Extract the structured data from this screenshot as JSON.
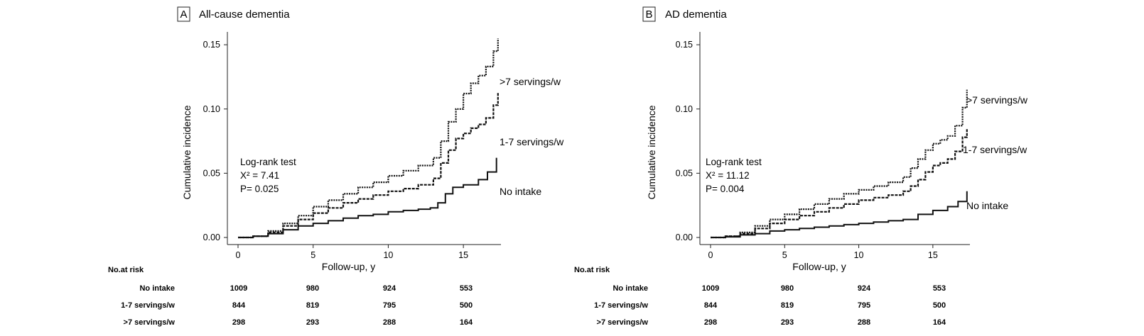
{
  "chart_data": [
    {
      "type": "line",
      "panel_letter": "A",
      "title": "All-cause dementia",
      "xlabel": "Follow-up, y",
      "ylabel": "Cumulative incidence",
      "xlim": [
        0,
        17.5
      ],
      "ylim": [
        0,
        0.16
      ],
      "xticks": [
        0,
        5,
        10,
        15
      ],
      "yticks": [
        "0.00",
        "0.05",
        "0.10",
        "0.15"
      ],
      "stats": [
        "Log-rank test",
        "X² = 7.41",
        "P= 0.025"
      ],
      "series": [
        {
          "name": "No intake",
          "style": "solid",
          "x": [
            0,
            1,
            2,
            3,
            4,
            5,
            6,
            7,
            8,
            9,
            10,
            11,
            12,
            12.8,
            13.3,
            13.8,
            14.3,
            15,
            16,
            16.6,
            17.2
          ],
          "y": [
            0,
            0.001,
            0.003,
            0.006,
            0.009,
            0.011,
            0.013,
            0.015,
            0.017,
            0.018,
            0.02,
            0.021,
            0.022,
            0.023,
            0.027,
            0.034,
            0.039,
            0.041,
            0.045,
            0.051,
            0.062
          ]
        },
        {
          "name": "1-7 servings/w",
          "style": "dashed",
          "x": [
            0,
            1,
            2,
            3,
            4,
            5,
            6,
            7,
            8,
            9,
            10,
            11,
            12,
            13,
            13.5,
            14,
            14.5,
            15,
            15.5,
            16,
            16.5,
            17,
            17.3
          ],
          "y": [
            0,
            0.001,
            0.004,
            0.009,
            0.014,
            0.019,
            0.023,
            0.027,
            0.03,
            0.033,
            0.036,
            0.038,
            0.041,
            0.046,
            0.058,
            0.068,
            0.077,
            0.081,
            0.085,
            0.088,
            0.093,
            0.103,
            0.113
          ]
        },
        {
          "name": ">7 servings/w",
          "style": "dotted",
          "x": [
            0,
            1,
            2,
            3,
            4,
            5,
            6,
            7,
            8,
            9,
            10,
            11,
            12,
            13,
            13.5,
            14,
            14.5,
            15,
            15.5,
            16,
            16.5,
            17,
            17.3
          ],
          "y": [
            0,
            0.001,
            0.005,
            0.011,
            0.017,
            0.024,
            0.029,
            0.034,
            0.039,
            0.043,
            0.048,
            0.052,
            0.056,
            0.062,
            0.075,
            0.09,
            0.1,
            0.112,
            0.12,
            0.126,
            0.133,
            0.145,
            0.155
          ]
        }
      ],
      "risk_table": {
        "header": "No.at risk",
        "rows": [
          {
            "label": "No intake",
            "values": [
              "1009",
              "980",
              "924",
              "553"
            ]
          },
          {
            "label": "1-7 servings/w",
            "values": [
              "844",
              "819",
              "795",
              "500"
            ]
          },
          {
            "label": ">7 servings/w",
            "values": [
              "298",
              "293",
              "288",
              "164"
            ]
          }
        ]
      }
    },
    {
      "type": "line",
      "panel_letter": "B",
      "title": "AD dementia",
      "xlabel": "Follow-up, y",
      "ylabel": "Cumulative incidence",
      "xlim": [
        0,
        17.5
      ],
      "ylim": [
        0,
        0.16
      ],
      "xticks": [
        0,
        5,
        10,
        15
      ],
      "yticks": [
        "0.00",
        "0.05",
        "0.10",
        "0.15"
      ],
      "stats": [
        "Log-rank test",
        "X² = 11.12",
        "P= 0.004"
      ],
      "series": [
        {
          "name": "No intake",
          "style": "solid",
          "x": [
            0,
            1,
            2,
            3,
            4,
            5,
            6,
            7,
            8,
            9,
            10,
            11,
            12,
            13,
            14,
            15,
            16,
            16.7,
            17.3
          ],
          "y": [
            0,
            0.0005,
            0.002,
            0.003,
            0.005,
            0.006,
            0.007,
            0.008,
            0.009,
            0.01,
            0.011,
            0.012,
            0.013,
            0.014,
            0.018,
            0.021,
            0.024,
            0.028,
            0.036
          ]
        },
        {
          "name": "1-7 servings/w",
          "style": "dashed",
          "x": [
            0,
            1,
            2,
            3,
            4,
            5,
            6,
            7,
            8,
            9,
            10,
            11,
            12,
            13,
            13.5,
            14,
            14.5,
            15,
            15.5,
            16,
            16.5,
            17,
            17.3
          ],
          "y": [
            0,
            0.001,
            0.003,
            0.007,
            0.011,
            0.014,
            0.017,
            0.02,
            0.023,
            0.026,
            0.029,
            0.031,
            0.033,
            0.036,
            0.04,
            0.045,
            0.051,
            0.056,
            0.058,
            0.061,
            0.067,
            0.078,
            0.085
          ]
        },
        {
          "name": ">7 servings/w",
          "style": "dotted",
          "x": [
            0,
            1,
            2,
            3,
            4,
            5,
            6,
            7,
            8,
            9,
            10,
            11,
            12,
            13,
            13.5,
            14,
            14.5,
            15,
            15.5,
            16,
            16.5,
            17,
            17.3
          ],
          "y": [
            0,
            0.001,
            0.004,
            0.009,
            0.014,
            0.018,
            0.022,
            0.026,
            0.03,
            0.034,
            0.037,
            0.04,
            0.043,
            0.047,
            0.054,
            0.061,
            0.068,
            0.073,
            0.076,
            0.079,
            0.087,
            0.101,
            0.115
          ]
        }
      ],
      "risk_table": {
        "header": "No.at risk",
        "rows": [
          {
            "label": "No intake",
            "values": [
              "1009",
              "980",
              "924",
              "553"
            ]
          },
          {
            "label": "1-7 servings/w",
            "values": [
              "844",
              "819",
              "795",
              "500"
            ]
          },
          {
            "label": ">7 servings/w",
            "values": [
              "298",
              "293",
              "288",
              "164"
            ]
          }
        ]
      }
    }
  ]
}
